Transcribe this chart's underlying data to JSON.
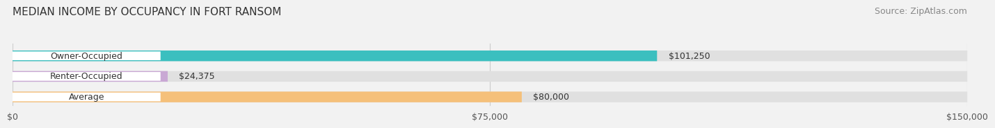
{
  "title": "MEDIAN INCOME BY OCCUPANCY IN FORT RANSOM",
  "source_text": "Source: ZipAtlas.com",
  "categories": [
    "Owner-Occupied",
    "Renter-Occupied",
    "Average"
  ],
  "values": [
    101250,
    24375,
    80000
  ],
  "bar_colors": [
    "#3bbfbf",
    "#c9a8d4",
    "#f5c07a"
  ],
  "bar_labels": [
    "$101,250",
    "$24,375",
    "$80,000"
  ],
  "xlim": [
    0,
    150000
  ],
  "xtick_values": [
    0,
    75000,
    150000
  ],
  "xtick_labels": [
    "$0",
    "$75,000",
    "$150,000"
  ],
  "background_color": "#f2f2f2",
  "bar_bg_color": "#e0e0e0",
  "label_bg_color": "#ffffff",
  "title_fontsize": 11,
  "source_fontsize": 9,
  "label_fontsize": 9,
  "tick_fontsize": 9
}
